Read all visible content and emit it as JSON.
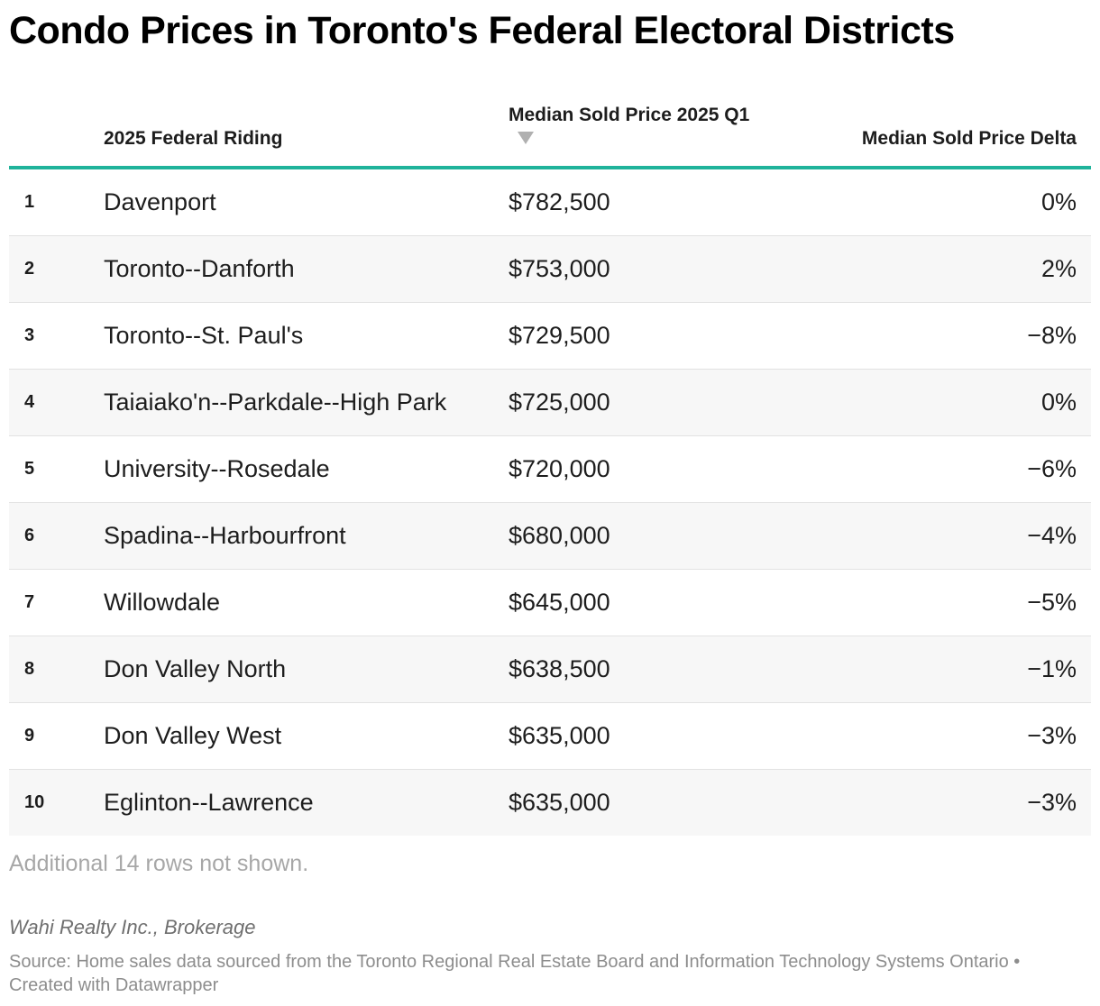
{
  "header": {
    "title": "Condo Prices in Toronto's Federal Electoral Districts"
  },
  "chart_data": {
    "type": "table",
    "title": "Condo Prices in Toronto's Federal Electoral Districts",
    "columns": [
      "",
      "2025 Federal Riding",
      "Median Sold Price 2025 Q1",
      "Median Sold Price Delta"
    ],
    "sorted_by": "Median Sold Price 2025 Q1",
    "sort_direction": "descending",
    "rows": [
      {
        "rank": "1",
        "riding": "Davenport",
        "price": "$782,500",
        "delta": "0%"
      },
      {
        "rank": "2",
        "riding": "Toronto--Danforth",
        "price": "$753,000",
        "delta": "2%"
      },
      {
        "rank": "3",
        "riding": "Toronto--St. Paul's",
        "price": "$729,500",
        "delta": "−8%"
      },
      {
        "rank": "4",
        "riding": "Taiaiako'n--Parkdale--High Park",
        "price": "$725,000",
        "delta": "0%"
      },
      {
        "rank": "5",
        "riding": "University--Rosedale",
        "price": "$720,000",
        "delta": "−6%"
      },
      {
        "rank": "6",
        "riding": "Spadina--Harbourfront",
        "price": "$680,000",
        "delta": "−4%"
      },
      {
        "rank": "7",
        "riding": "Willowdale",
        "price": "$645,000",
        "delta": "−5%"
      },
      {
        "rank": "8",
        "riding": "Don Valley North",
        "price": "$638,500",
        "delta": "−1%"
      },
      {
        "rank": "9",
        "riding": "Don Valley West",
        "price": "$635,000",
        "delta": "−3%"
      },
      {
        "rank": "10",
        "riding": "Eglinton--Lawrence",
        "price": "$635,000",
        "delta": "−3%"
      }
    ]
  },
  "table": {
    "col_riding": "2025 Federal Riding",
    "col_price": "Median Sold Price 2025 Q1",
    "col_delta": "Median Sold Price Delta",
    "sort_icon": "sort-descending-icon"
  },
  "footer": {
    "notes": "Additional 14 rows not shown.",
    "byline": "Wahi Realty Inc., Brokerage",
    "source": "Source: Home sales data sourced from the Toronto Regional Real Estate Board and Information Technology Systems Ontario • Created with Datawrapper"
  },
  "colors": {
    "header_rule": "#1fb39b",
    "alt_row": "#f7f7f7",
    "sort_arrow": "#b0b0b0"
  }
}
